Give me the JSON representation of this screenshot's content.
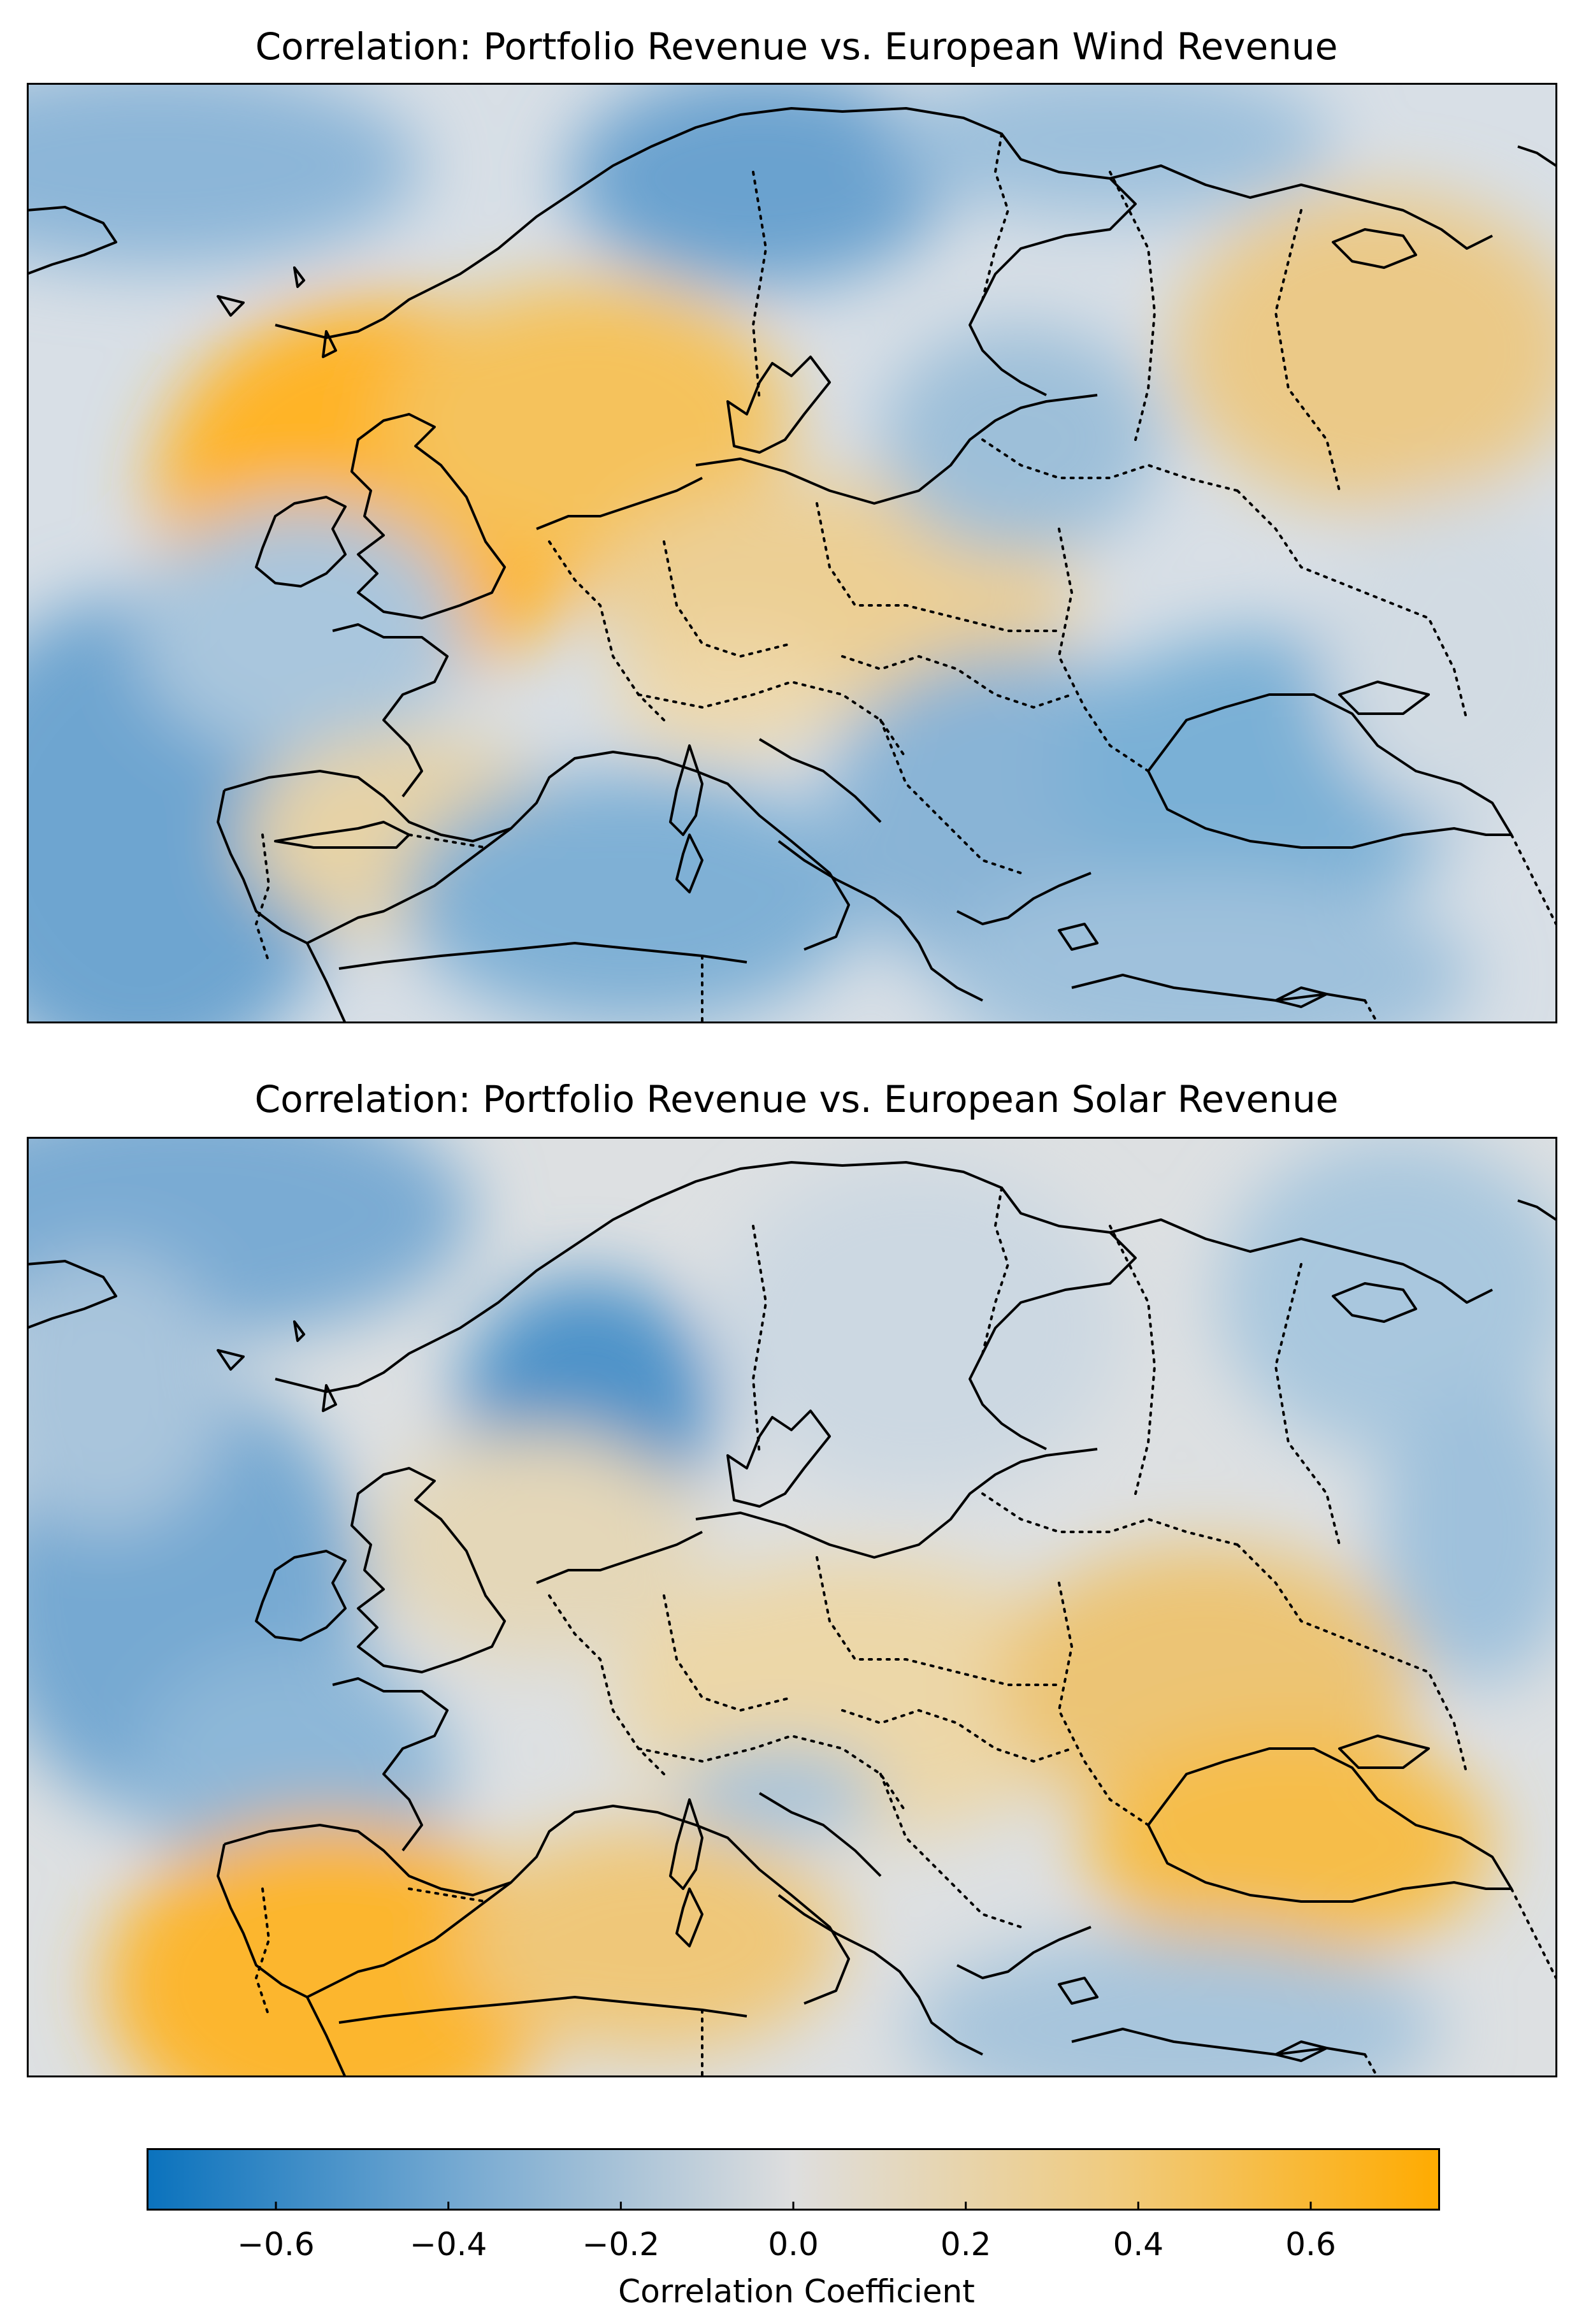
{
  "panels": [
    {
      "title": "Correlation: Portfolio Revenue vs. European Wind Revenue",
      "variable": "wind",
      "pattern": [
        {
          "region": "Ireland and Great Britain",
          "value": 0.65
        },
        {
          "region": "North Sea",
          "value": 0.45
        },
        {
          "region": "Germany and Poland",
          "value": 0.25
        },
        {
          "region": "Northwest Russia",
          "value": 0.25
        },
        {
          "region": "Atlantic off Iberia",
          "value": -0.45
        },
        {
          "region": "Western Mediterranean",
          "value": -0.4
        },
        {
          "region": "Black Sea",
          "value": -0.35
        },
        {
          "region": "Balkans",
          "value": -0.3
        },
        {
          "region": "Baltic Sea",
          "value": -0.3
        },
        {
          "region": "Norwegian Sea",
          "value": -0.35
        }
      ]
    },
    {
      "title": "Correlation: Portfolio Revenue vs. European Solar Revenue",
      "variable": "solar",
      "pattern": [
        {
          "region": "Iberian Peninsula",
          "value": 0.55
        },
        {
          "region": "Western Mediterranean",
          "value": 0.35
        },
        {
          "region": "Black Sea",
          "value": 0.45
        },
        {
          "region": "Ukraine",
          "value": 0.3
        },
        {
          "region": "Central Europe",
          "value": 0.15
        },
        {
          "region": "Southern Norway",
          "value": -0.55
        },
        {
          "region": "Ireland and Atlantic",
          "value": -0.45
        },
        {
          "region": "Bay of Biscay",
          "value": -0.35
        },
        {
          "region": "Arctic Ocean",
          "value": -0.4
        },
        {
          "region": "Eastern Mediterranean",
          "value": -0.25
        }
      ]
    }
  ],
  "colorbar": {
    "label": "Correlation Coefficient",
    "vmin": -0.75,
    "vmax": 0.75,
    "ticks": [
      "−0.6",
      "−0.4",
      "−0.2",
      "0.0",
      "0.2",
      "0.4",
      "0.6"
    ],
    "tick_values": [
      -0.6,
      -0.4,
      -0.2,
      0.0,
      0.2,
      0.4,
      0.6
    ],
    "colors": {
      "negative": "#0a72bd",
      "neutral": "#dedede",
      "positive": "#ffab00"
    }
  },
  "map_features": [
    "coastlines",
    "borders"
  ]
}
